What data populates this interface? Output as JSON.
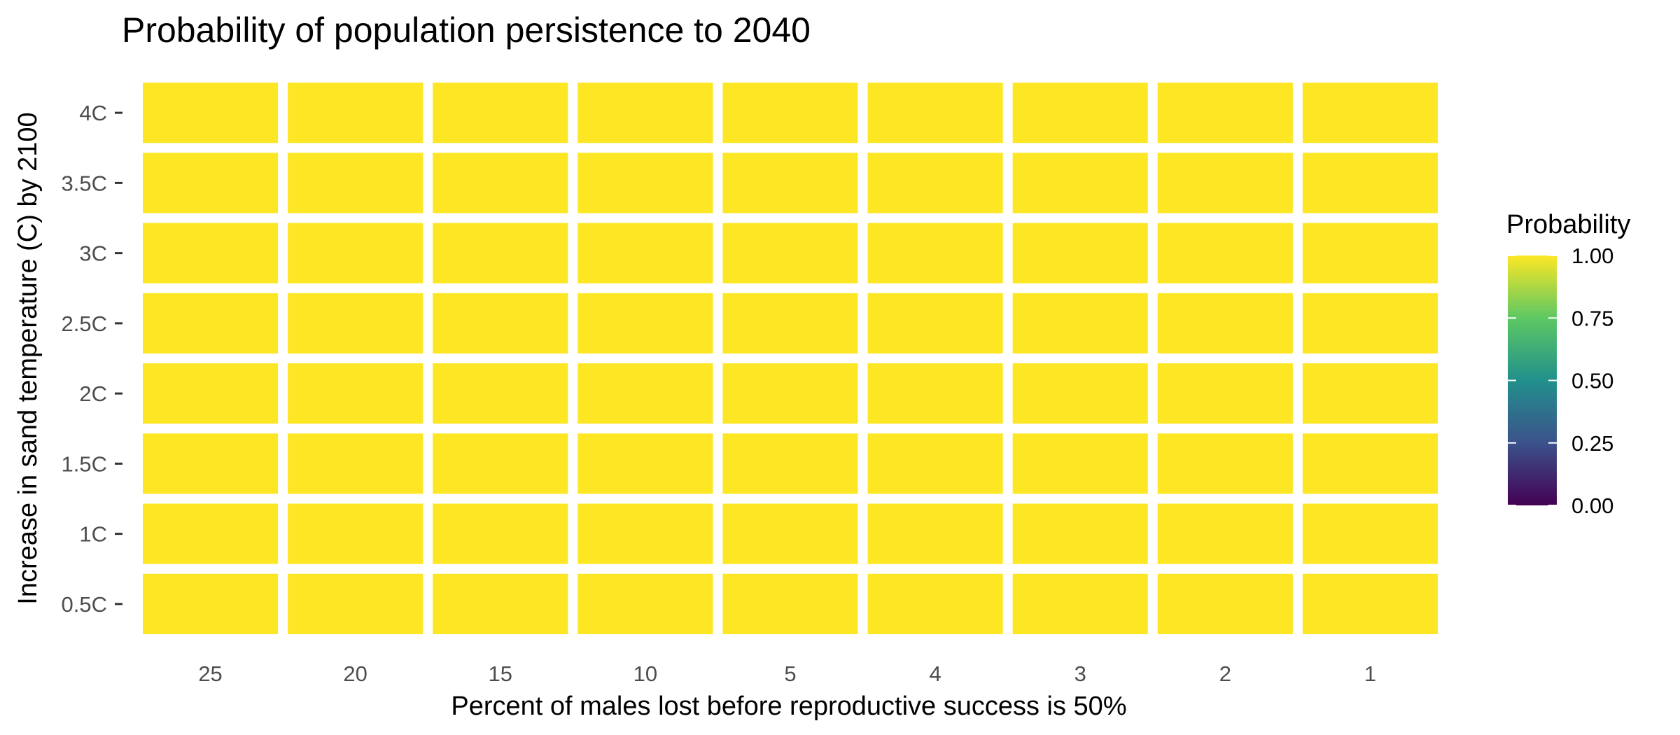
{
  "chart_data": {
    "type": "heatmap",
    "title": "Probability of population persistence to 2040",
    "xlabel": "Percent of males lost before reproductive success is 50%",
    "ylabel": "Increase in sand temperature (C) by 2100",
    "x_categories": [
      "25",
      "20",
      "15",
      "10",
      "5",
      "4",
      "3",
      "2",
      "1"
    ],
    "y_categories": [
      "0.5C",
      "1C",
      "1.5C",
      "2C",
      "2.5C",
      "3C",
      "3.5C",
      "4C"
    ],
    "values": [
      [
        1,
        1,
        1,
        1,
        1,
        1,
        1,
        1,
        1
      ],
      [
        1,
        1,
        1,
        1,
        1,
        1,
        1,
        1,
        1
      ],
      [
        1,
        1,
        1,
        1,
        1,
        1,
        1,
        1,
        1
      ],
      [
        1,
        1,
        1,
        1,
        1,
        1,
        1,
        1,
        1
      ],
      [
        1,
        1,
        1,
        1,
        1,
        1,
        1,
        1,
        1
      ],
      [
        1,
        1,
        1,
        1,
        1,
        1,
        1,
        1,
        1
      ],
      [
        1,
        1,
        1,
        1,
        1,
        1,
        1,
        1,
        1
      ],
      [
        1,
        1,
        1,
        1,
        1,
        1,
        1,
        1,
        1
      ]
    ],
    "legend": {
      "title": "Probability",
      "position": "right",
      "range": [
        0,
        1
      ],
      "breaks": [
        "1.00",
        "0.75",
        "0.50",
        "0.25",
        "0.00"
      ],
      "colors": [
        "#440154",
        "#3b528b",
        "#21908c",
        "#5dc863",
        "#fde725"
      ]
    },
    "grid": false
  }
}
